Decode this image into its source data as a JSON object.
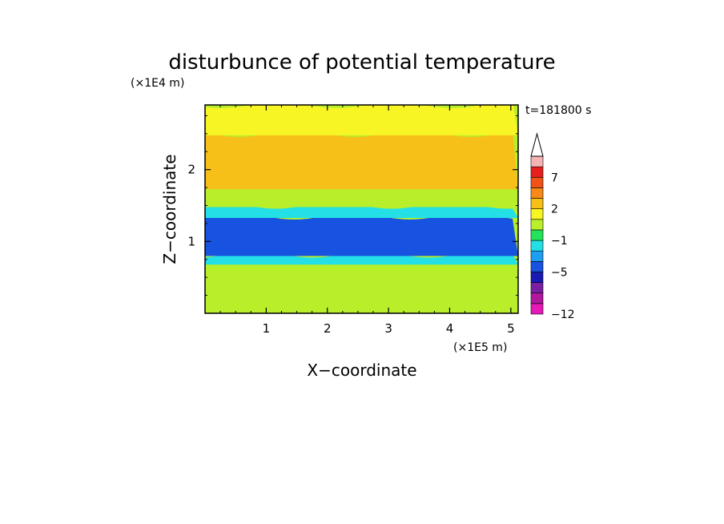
{
  "chart_data": {
    "type": "heatmap",
    "title": "disturbunce of potential temperature",
    "time_label": "t=181800 s",
    "xlabel": "X−coordinate",
    "ylabel": "Z−coordinate",
    "x_unit": "(×1E5 m)",
    "y_unit": "(×1E4 m)",
    "xlim": [
      0,
      5.12
    ],
    "ylim": [
      0,
      2.9
    ],
    "x_ticks": [
      1,
      2,
      3,
      4,
      5
    ],
    "x_tick_labels": [
      "1",
      "2",
      "3",
      "4",
      "5"
    ],
    "y_ticks": [
      1,
      2
    ],
    "y_tick_labels": [
      "1",
      "2"
    ],
    "colorbar": {
      "levels": [
        -12,
        -10,
        -8,
        -6,
        -5,
        -3,
        -2,
        -1,
        0,
        1,
        2,
        3,
        5,
        7,
        9
      ],
      "colors": [
        "#e817b8",
        "#b0189e",
        "#7a1fa0",
        "#1a1ab4",
        "#1852e0",
        "#1e9ef0",
        "#22e0e6",
        "#22e35a",
        "#b8ef2a",
        "#f7f524",
        "#f7c018",
        "#f78a18",
        "#f05218",
        "#e61e1e",
        "#f5b4b4"
      ],
      "labeled_ticks": [
        {
          "level": -12,
          "label": "−12"
        },
        {
          "level": -5,
          "label": "−5"
        },
        {
          "level": -1,
          "label": "−1"
        },
        {
          "level": 2,
          "label": "2"
        },
        {
          "level": 7,
          "label": "7"
        }
      ]
    },
    "field_bands": [
      {
        "z_range": [
          0.0,
          0.35
        ],
        "value": 0.5
      },
      {
        "z_range": [
          0.35,
          0.7
        ],
        "value": 0.3
      },
      {
        "z_range": [
          0.7,
          0.82
        ],
        "value": -1.5
      },
      {
        "z_range": [
          0.82,
          1.35
        ],
        "value": -4
      },
      {
        "z_range": [
          1.35,
          1.5
        ],
        "value": -1.5
      },
      {
        "z_range": [
          1.5,
          1.75
        ],
        "value": 0
      },
      {
        "z_range": [
          1.75,
          2.5
        ],
        "value": 2
      },
      {
        "z_range": [
          2.5,
          2.9
        ],
        "value": 1
      }
    ]
  }
}
